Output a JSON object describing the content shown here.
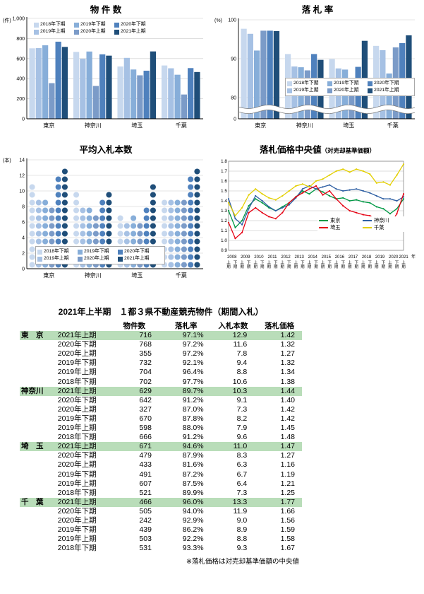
{
  "charts": {
    "bukken": {
      "type": "bar",
      "title": "物 件 数",
      "unit": "(件)",
      "categories": [
        "東京",
        "神奈川",
        "埼玉",
        "千葉"
      ],
      "ylim": [
        0,
        1000
      ],
      "ytick_step": 200,
      "series": [
        {
          "name": "2018年下期",
          "color": "#c7d8ee",
          "values": [
            702,
            666,
            521,
            531
          ]
        },
        {
          "name": "2019年上期",
          "color": "#a6c1e4",
          "values": [
            704,
            598,
            607,
            503
          ]
        },
        {
          "name": "2019年下期",
          "color": "#87aed9",
          "values": [
            732,
            670,
            491,
            439
          ]
        },
        {
          "name": "2020年上期",
          "color": "#7b9bc8",
          "values": [
            355,
            327,
            433,
            242
          ]
        },
        {
          "name": "2020年下期",
          "color": "#4f81bd",
          "values": [
            768,
            642,
            479,
            505
          ]
        },
        {
          "name": "2021年上期",
          "color": "#1f4e79",
          "values": [
            716,
            629,
            671,
            466
          ]
        }
      ]
    },
    "raku": {
      "type": "bar",
      "title": "落 札 率",
      "unit": "(%)",
      "categories": [
        "東京",
        "神奈川",
        "埼玉",
        "千葉"
      ],
      "yticks": [
        0,
        80,
        90,
        100
      ],
      "broken_axis": true,
      "series": [
        {
          "name": "2018年下期",
          "color": "#c7d8ee",
          "values": [
            97.7,
            91.2,
            89.9,
            93.3
          ]
        },
        {
          "name": "2019年上期",
          "color": "#a6c1e4",
          "values": [
            96.4,
            88.0,
            87.5,
            92.2
          ]
        },
        {
          "name": "2019年下期",
          "color": "#87aed9",
          "values": [
            92.1,
            87.8,
            87.2,
            86.2
          ]
        },
        {
          "name": "2020年上期",
          "color": "#7b9bc8",
          "values": [
            97.2,
            87.0,
            81.6,
            92.9
          ]
        },
        {
          "name": "2020年下期",
          "color": "#4f81bd",
          "values": [
            97.2,
            91.2,
            87.9,
            94.0
          ]
        },
        {
          "name": "2021年上期",
          "color": "#1f4e79",
          "values": [
            97.1,
            89.7,
            94.6,
            96.0
          ]
        }
      ]
    },
    "nyu": {
      "type": "dot-bar",
      "title": "平均入札本数",
      "unit": "(本)",
      "categories": [
        "東京",
        "神奈川",
        "埼玉",
        "千葉"
      ],
      "ylim": [
        0,
        14
      ],
      "ytick_step": 2,
      "series": [
        {
          "name": "2018年下期",
          "color": "#c7d8ee",
          "values": [
            10.6,
            9.6,
            7.3,
            9.3
          ]
        },
        {
          "name": "2019年上期",
          "color": "#a6c1e4",
          "values": [
            8.8,
            7.9,
            6.4,
            8.8
          ]
        },
        {
          "name": "2019年下期",
          "color": "#87aed9",
          "values": [
            9.4,
            8.2,
            6.7,
            8.9
          ]
        },
        {
          "name": "2020年上期",
          "color": "#7b9bc8",
          "values": [
            7.8,
            7.3,
            6.3,
            9.0
          ]
        },
        {
          "name": "2020年下期",
          "color": "#4f81bd",
          "values": [
            11.6,
            9.1,
            8.3,
            11.9
          ]
        },
        {
          "name": "2021年上期",
          "color": "#1f4e79",
          "values": [
            12.9,
            10.3,
            11.0,
            13.3
          ]
        }
      ]
    },
    "price": {
      "type": "line",
      "title": "落札価格中央値",
      "title_sub": "（対売却基準価額）",
      "ylim": [
        0.9,
        1.8
      ],
      "ytick_step": 0.1,
      "years": [
        2008,
        2009,
        2010,
        2011,
        2012,
        2013,
        2014,
        2015,
        2016,
        2017,
        2018,
        2019,
        2020,
        2021
      ],
      "half_labels": [
        "上期",
        "下期"
      ],
      "year_suffix": "年",
      "series": [
        {
          "name": "東京",
          "color": "#009945",
          "values": [
            1.3,
            1.13,
            1.2,
            1.35,
            1.42,
            1.38,
            1.33,
            1.3,
            1.34,
            1.38,
            1.44,
            1.5,
            1.47,
            1.52,
            1.49,
            1.45,
            1.42,
            1.43,
            1.4,
            1.41,
            1.39,
            1.38,
            1.34,
            1.32,
            1.27,
            1.32,
            1.42
          ]
        },
        {
          "name": "神奈川",
          "color": "#2e5fa3",
          "values": [
            1.42,
            1.22,
            1.16,
            1.32,
            1.45,
            1.4,
            1.34,
            1.3,
            1.33,
            1.36,
            1.43,
            1.52,
            1.55,
            1.52,
            1.54,
            1.56,
            1.52,
            1.5,
            1.51,
            1.52,
            1.5,
            1.48,
            1.45,
            1.42,
            1.42,
            1.4,
            1.44
          ]
        },
        {
          "name": "埼玉",
          "color": "#e60012",
          "values": [
            1.18,
            1.02,
            1.08,
            1.28,
            1.33,
            1.28,
            1.24,
            1.22,
            1.28,
            1.38,
            1.44,
            1.48,
            1.52,
            1.55,
            1.46,
            1.5,
            1.42,
            1.35,
            1.3,
            1.28,
            1.26,
            1.25,
            1.21,
            1.19,
            1.16,
            1.27,
            1.47
          ]
        },
        {
          "name": "千葉",
          "color": "#e3cf00",
          "values": [
            1.38,
            1.25,
            1.33,
            1.46,
            1.52,
            1.47,
            1.43,
            1.41,
            1.45,
            1.5,
            1.55,
            1.57,
            1.54,
            1.6,
            1.62,
            1.66,
            1.7,
            1.72,
            1.69,
            1.72,
            1.7,
            1.67,
            1.58,
            1.59,
            1.56,
            1.66,
            1.77
          ]
        }
      ]
    }
  },
  "table": {
    "title": "2021年上半期　１都３県不動産競売物件（期間入札）",
    "columns": [
      "物件数",
      "落札率",
      "入札本数",
      "落札価格"
    ],
    "footnote": "※落札価格は対売却基準価額の中央値",
    "highlight_color": "#b9ddb9",
    "groups": [
      {
        "region": "東　京",
        "rows": [
          {
            "period": "2021年上期",
            "items": "716",
            "rate": "97.1%",
            "bids": "12.9",
            "price": "1.42",
            "highlight": true
          },
          {
            "period": "2020年下期",
            "items": "768",
            "rate": "97.2%",
            "bids": "11.6",
            "price": "1.32"
          },
          {
            "period": "2020年上期",
            "items": "355",
            "rate": "97.2%",
            "bids": "7.8",
            "price": "1.27"
          },
          {
            "period": "2019年下期",
            "items": "732",
            "rate": "92.1%",
            "bids": "9.4",
            "price": "1.32"
          },
          {
            "period": "2019年上期",
            "items": "704",
            "rate": "96.4%",
            "bids": "8.8",
            "price": "1.34"
          },
          {
            "period": "2018年下期",
            "items": "702",
            "rate": "97.7%",
            "bids": "10.6",
            "price": "1.38"
          }
        ]
      },
      {
        "region": "神奈川",
        "rows": [
          {
            "period": "2021年上期",
            "items": "629",
            "rate": "89.7%",
            "bids": "10.3",
            "price": "1.44",
            "highlight": true
          },
          {
            "period": "2020年下期",
            "items": "642",
            "rate": "91.2%",
            "bids": "9.1",
            "price": "1.40"
          },
          {
            "period": "2020年上期",
            "items": "327",
            "rate": "87.0%",
            "bids": "7.3",
            "price": "1.42"
          },
          {
            "period": "2019年下期",
            "items": "670",
            "rate": "87.8%",
            "bids": "8.2",
            "price": "1.42"
          },
          {
            "period": "2019年上期",
            "items": "598",
            "rate": "88.0%",
            "bids": "7.9",
            "price": "1.45"
          },
          {
            "period": "2018年下期",
            "items": "666",
            "rate": "91.2%",
            "bids": "9.6",
            "price": "1.48"
          }
        ]
      },
      {
        "region": "埼　玉",
        "rows": [
          {
            "period": "2021年上期",
            "items": "671",
            "rate": "94.6%",
            "bids": "11.0",
            "price": "1.47",
            "highlight": true
          },
          {
            "period": "2020年下期",
            "items": "479",
            "rate": "87.9%",
            "bids": "8.3",
            "price": "1.27"
          },
          {
            "period": "2020年上期",
            "items": "433",
            "rate": "81.6%",
            "bids": "6.3",
            "price": "1.16"
          },
          {
            "period": "2019年下期",
            "items": "491",
            "rate": "87.2%",
            "bids": "6.7",
            "price": "1.19"
          },
          {
            "period": "2019年上期",
            "items": "607",
            "rate": "87.5%",
            "bids": "6.4",
            "price": "1.21"
          },
          {
            "period": "2018年下期",
            "items": "521",
            "rate": "89.9%",
            "bids": "7.3",
            "price": "1.25"
          }
        ]
      },
      {
        "region": "千　葉",
        "rows": [
          {
            "period": "2021年上期",
            "items": "466",
            "rate": "96.0%",
            "bids": "13.3",
            "price": "1.77",
            "highlight": true
          },
          {
            "period": "2020年下期",
            "items": "505",
            "rate": "94.0%",
            "bids": "11.9",
            "price": "1.66"
          },
          {
            "period": "2020年上期",
            "items": "242",
            "rate": "92.9%",
            "bids": "9.0",
            "price": "1.56"
          },
          {
            "period": "2019年下期",
            "items": "439",
            "rate": "86.2%",
            "bids": "8.9",
            "price": "1.59"
          },
          {
            "period": "2019年上期",
            "items": "503",
            "rate": "92.2%",
            "bids": "8.8",
            "price": "1.58"
          },
          {
            "period": "2018年下期",
            "items": "531",
            "rate": "93.3%",
            "bids": "9.3",
            "price": "1.67"
          }
        ]
      }
    ]
  }
}
